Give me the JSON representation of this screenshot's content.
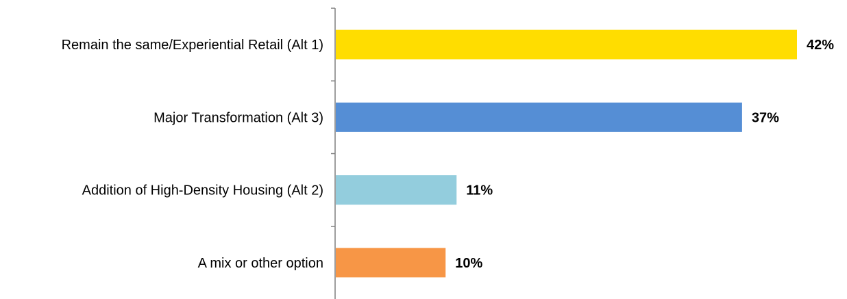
{
  "chart_data": {
    "type": "bar",
    "orientation": "horizontal",
    "categories": [
      "Remain the same/Experiential Retail (Alt 1)",
      "Major Transformation (Alt 3)",
      "Addition of High-Density Housing (Alt 2)",
      "A mix or other option"
    ],
    "values": [
      42,
      37,
      11,
      10
    ],
    "value_labels": [
      "42%",
      "37%",
      "11%",
      "10%"
    ],
    "colors": [
      "#FFDD00",
      "#558ED5",
      "#93CDDD",
      "#F79646"
    ],
    "xlim": [
      0,
      42
    ],
    "title": "",
    "xlabel": "",
    "ylabel": "",
    "grid": false,
    "legend": "none"
  }
}
